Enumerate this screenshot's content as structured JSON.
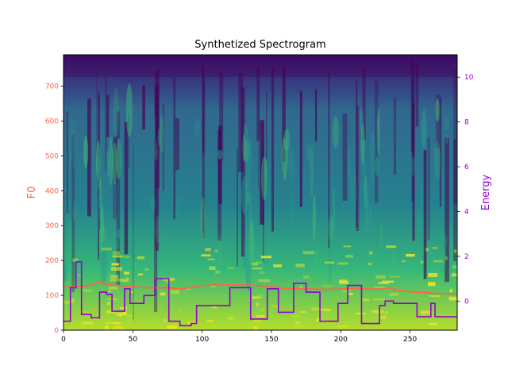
{
  "chart_data": {
    "type": "line",
    "title": "Synthetized Spectrogram",
    "background": "spectrogram-heatmap",
    "colors": {
      "f0": "#ff6347",
      "energy": "#9400d3",
      "f0_tick": "#ff6347",
      "energy_tick": "#9400d3",
      "heat_low": "#440154",
      "heat_mid": "#21918c",
      "heat_high": "#fde725"
    },
    "x_axis": {
      "range": [
        0,
        284
      ],
      "ticks": [
        0,
        50,
        100,
        150,
        200,
        250
      ],
      "tick_labels": [
        "0",
        "50",
        "100",
        "150",
        "200",
        "250"
      ]
    },
    "y_left": {
      "label": "F0",
      "range": [
        0,
        790
      ],
      "ticks": [
        0,
        100,
        200,
        300,
        400,
        500,
        600,
        700
      ],
      "tick_labels": [
        "0",
        "100",
        "200",
        "300",
        "400",
        "500",
        "600",
        "700"
      ]
    },
    "y_right": {
      "label": "Energy",
      "range": [
        -1.3,
        11.0
      ],
      "ticks": [
        0,
        2,
        4,
        6,
        8,
        10
      ],
      "tick_labels": [
        "0",
        "2",
        "4",
        "6",
        "8",
        "10"
      ]
    },
    "series": [
      {
        "name": "F0",
        "axis": "left",
        "style": "line",
        "x": [
          0,
          20,
          27,
          30,
          35,
          50,
          60,
          75,
          85,
          95,
          100,
          110,
          120,
          130,
          140,
          150,
          160,
          170,
          180,
          190,
          200,
          210,
          220,
          230,
          235,
          240,
          250,
          260,
          270,
          284
        ],
        "y": [
          123,
          128,
          140,
          133,
          130,
          125,
          122,
          122,
          118,
          125,
          128,
          130,
          130,
          130,
          128,
          125,
          120,
          120,
          118,
          117,
          118,
          120,
          118,
          118,
          122,
          115,
          110,
          108,
          105,
          105
        ]
      },
      {
        "name": "Energy",
        "axis": "right",
        "style": "step",
        "x": [
          0,
          5,
          9,
          13,
          20,
          26,
          31,
          35,
          44,
          48,
          52,
          58,
          66,
          76,
          84,
          92,
          96,
          120,
          135,
          147,
          155,
          166,
          175,
          185,
          198,
          205,
          215,
          228,
          232,
          238,
          255,
          265,
          268,
          284
        ],
        "y": [
          -0.9,
          0.6,
          1.75,
          -0.6,
          -0.75,
          0.4,
          0.3,
          -0.45,
          0.55,
          -0.1,
          -0.1,
          0.25,
          1.0,
          -0.9,
          -1.1,
          -1.0,
          -0.2,
          0.6,
          -0.8,
          0.55,
          -0.5,
          0.8,
          0.4,
          -0.9,
          -0.1,
          0.7,
          -1.0,
          -0.2,
          0.0,
          -0.1,
          -0.7,
          -0.1,
          -0.7,
          -0.7
        ]
      }
    ],
    "grid": false,
    "legend": "none"
  }
}
